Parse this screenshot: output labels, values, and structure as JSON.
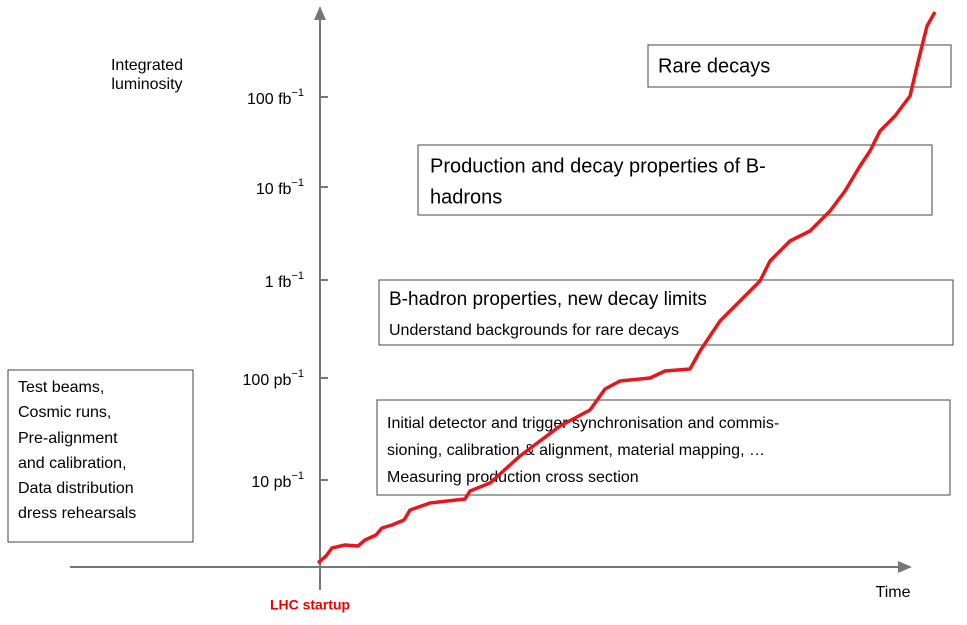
{
  "axis": {
    "title_lines": [
      "Integrated",
      "luminosity"
    ],
    "x_label": "Time",
    "origin_label": "LHC startup",
    "ticks": [
      {
        "value": "100 fb",
        "exp": "−1"
      },
      {
        "value": "10 fb",
        "exp": "−1"
      },
      {
        "value": "1 fb",
        "exp": "−1"
      },
      {
        "value": "100 pb",
        "exp": "−1"
      },
      {
        "value": "10 pb",
        "exp": "−1"
      }
    ]
  },
  "boxes": [
    {
      "lines": [
        "Rare decays"
      ]
    },
    {
      "lines": [
        "Production and decay properties of B-",
        "hadrons"
      ]
    },
    {
      "lines": [
        "B-hadron properties, new decay limits",
        "Understand backgrounds for rare decays"
      ]
    },
    {
      "lines": [
        "Initial detector and trigger synchronisation and commis-",
        "sioning, calibration & alignment, material mapping, …",
        "Measuring production cross section"
      ]
    },
    {
      "lines": [
        "Test beams,",
        "Cosmic runs,",
        "Pre-alignment",
        "and calibration,",
        "Data distribution",
        "dress rehearsals"
      ]
    }
  ]
}
